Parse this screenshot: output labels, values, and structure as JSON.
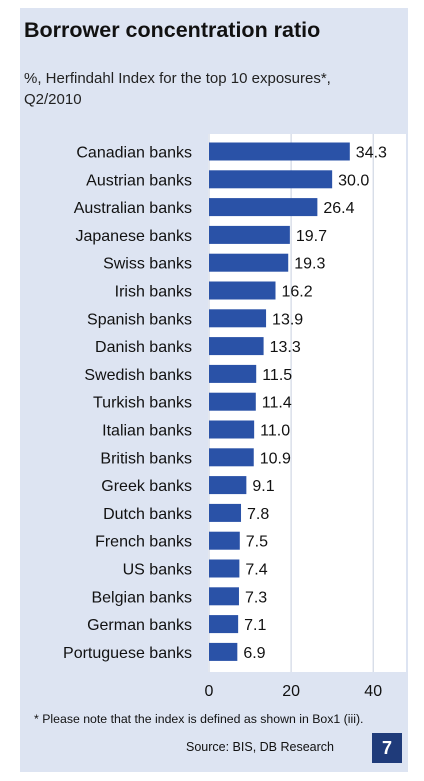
{
  "figure": {
    "note": "* Please note that the index is defined as shown in Box1 (iii).",
    "source": "Source: BIS, DB Research",
    "page_number": "7"
  },
  "colors": {
    "bar": "#2a52a7",
    "panel": "#dde4f2",
    "badge": "#1f3b7a"
  },
  "chart_data": {
    "type": "bar",
    "orientation": "horizontal",
    "title": "Borrower concentration ratio",
    "subtitle": "%, Herfindahl Index for the top 10 exposures*, Q2/2010",
    "xlabel": "",
    "ylabel": "",
    "xlim": [
      0,
      45
    ],
    "xticks": [
      0,
      20,
      40
    ],
    "grid": true,
    "categories": [
      "Canadian banks",
      "Austrian banks",
      "Australian banks",
      "Japanese banks",
      "Swiss banks",
      "Irish banks",
      "Spanish banks",
      "Danish banks",
      "Swedish banks",
      "Turkish banks",
      "Italian banks",
      "British banks",
      "Greek banks",
      "Dutch banks",
      "French banks",
      "US banks",
      "Belgian banks",
      "German banks",
      "Portuguese banks"
    ],
    "values": [
      34.3,
      30.0,
      26.4,
      19.7,
      19.3,
      16.2,
      13.9,
      13.3,
      11.5,
      11.4,
      11.0,
      10.9,
      9.1,
      7.8,
      7.5,
      7.4,
      7.3,
      7.1,
      6.9
    ],
    "value_labels": [
      "34.3",
      "30.0",
      "26.4",
      "19.7",
      "19.3",
      "16.2",
      "13.9",
      "13.3",
      "11.5",
      "11.4",
      "11.0",
      "10.9",
      "9.1",
      "7.8",
      "7.5",
      "7.4",
      "7.3",
      "7.1",
      "6.9"
    ]
  }
}
